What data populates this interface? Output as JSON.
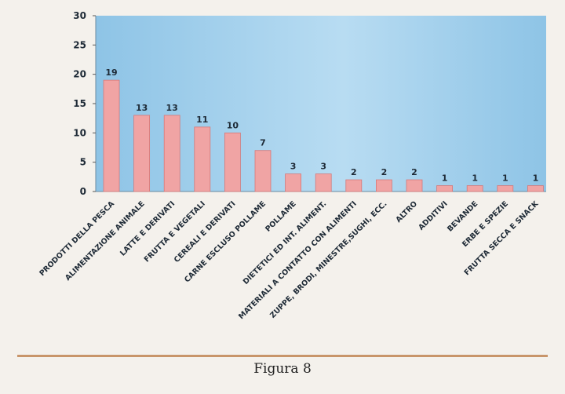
{
  "chart_data": {
    "type": "bar",
    "categories": [
      "PRODOTTI DELLA PESCA",
      "ALIMENTAZIONE ANIMALE",
      "LATTE E DERIVATI",
      "FRUTTA E VEGETALI",
      "CEREALI E DERIVATI",
      "CARNE ESCLUSO POLLAME",
      "POLLAME",
      "DIETETICI ED INT. ALIMENT.",
      "MATERIALI A CONTATTO CON ALIMENTI",
      "ZUPPE, BRODI, MINESTRE,SUGHI, ECC.",
      "ALTRO",
      "ADDITIVI",
      "BEVANDE",
      "ERBE E SPEZIE",
      "FRUTTA SECCA E SNACK"
    ],
    "values": [
      19,
      13,
      13,
      11,
      10,
      7,
      3,
      3,
      2,
      2,
      2,
      1,
      1,
      1,
      1
    ],
    "ylim": [
      0,
      30
    ],
    "yticks": [
      0,
      5,
      10,
      15,
      20,
      25,
      30
    ],
    "grid": false,
    "colors": {
      "bar": "#f0a4a4",
      "bar_edge": "#d67878",
      "plot_bg": "#8ec4e6",
      "plot_bg_light": "#b8dcf2"
    }
  },
  "caption": "Figura 8"
}
